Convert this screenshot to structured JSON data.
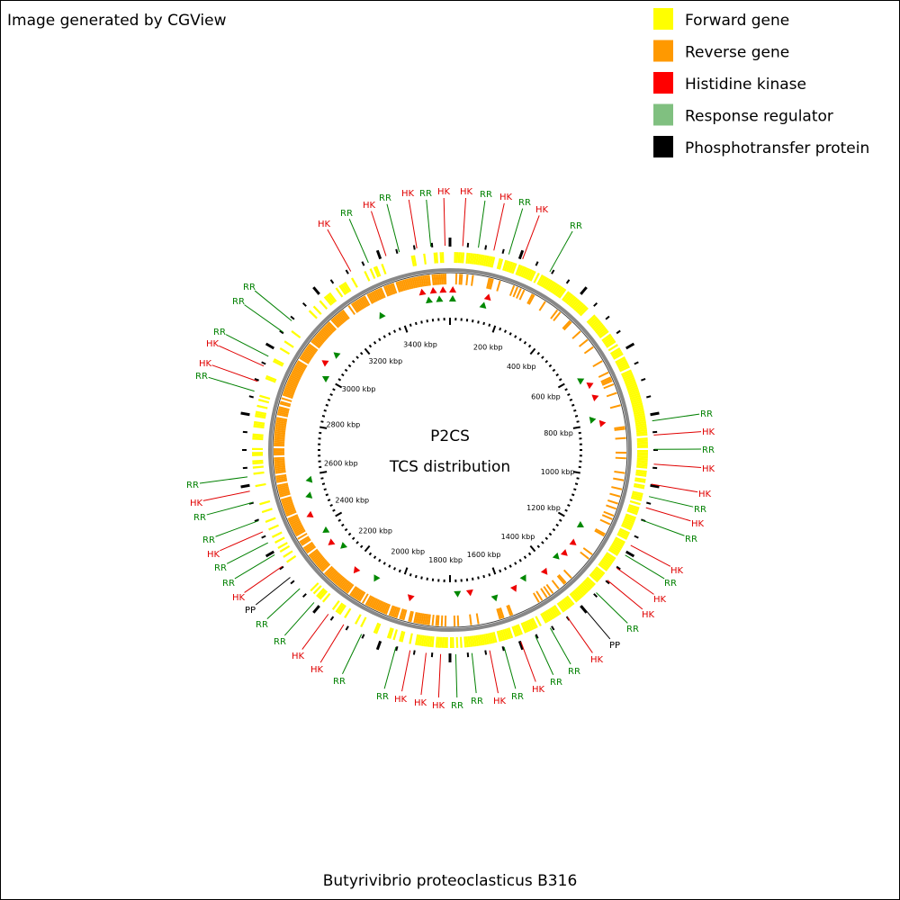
{
  "header": "Image generated by CGView",
  "legend": [
    {
      "label": "Forward gene",
      "color": "#ffff00"
    },
    {
      "label": "Reverse gene",
      "color": "#ff9900"
    },
    {
      "label": "Histidine kinase",
      "color": "#ff0000"
    },
    {
      "label": "Response regulator",
      "color": "#80c080"
    },
    {
      "label": "Phosphotransfer protein",
      "color": "#000000"
    }
  ],
  "center": {
    "line1": "P2CS",
    "line2": "TCS distribution"
  },
  "ticks": [
    "200 kbp",
    "400 kbp",
    "600 kbp",
    "800 kbp",
    "1000 kbp",
    "1200 kbp",
    "1400 kbp",
    "1600 kbp",
    "1800 kbp",
    "2000 kbp",
    "2200 kbp",
    "2400 kbp",
    "2600 kbp",
    "2800 kbp",
    "3000 kbp",
    "3200 kbp",
    "3400 kbp"
  ],
  "label_colors": {
    "HK": "#e00000",
    "RR": "#008000",
    "PP": "#000000"
  },
  "labels": [
    "HK",
    "RR",
    "HK",
    "RR",
    "HK",
    "RR",
    "HK",
    "HK",
    "RR",
    "HK",
    "RR",
    "HK",
    "RR",
    "RR",
    "HK",
    "RR",
    "HK",
    "HK",
    "RR",
    "HK",
    "RR",
    "HK",
    "RR",
    "HK",
    "HK",
    "RR",
    "PP",
    "HK",
    "RR",
    "RR",
    "HK",
    "RR",
    "HK",
    "RR",
    "RR",
    "HK",
    "HK",
    "HK",
    "RR",
    "RR",
    "HK",
    "HK",
    "RR",
    "RR",
    "PP",
    "HK",
    "RR",
    "RR",
    "HK",
    "RR",
    "RR",
    "HK",
    "RR",
    "RR",
    "HK",
    "HK",
    "RR",
    "RR",
    "RR"
  ],
  "footer": "Butyrivibrio proteoclasticus B316"
}
